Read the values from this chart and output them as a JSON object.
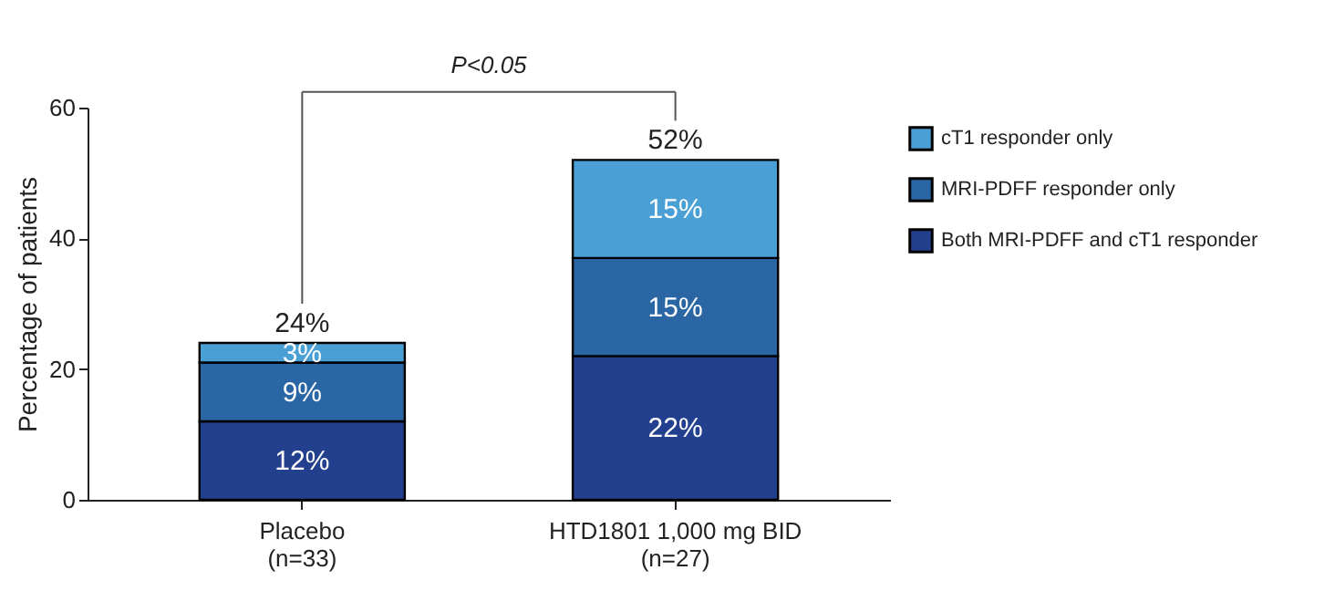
{
  "chart_data": {
    "type": "bar",
    "stacked": true,
    "categories": [
      "Placebo\n(n=33)",
      "HTD1801 1,000 mg BID\n(n=27)"
    ],
    "series": [
      {
        "name": "Both MRI-PDFF and cT1 responder",
        "color": "#23408e",
        "values": [
          12,
          22
        ],
        "value_labels": [
          "12%",
          "22%"
        ]
      },
      {
        "name": "MRI-PDFF responder only",
        "color": "#2a66a3",
        "values": [
          9,
          15
        ],
        "value_labels": [
          "9%",
          "15%"
        ]
      },
      {
        "name": "cT1 responder only",
        "color": "#4a9fd4",
        "values": [
          3,
          15
        ],
        "value_labels": [
          "3%",
          "15%"
        ]
      }
    ],
    "totals": [
      "24%",
      "52%"
    ],
    "ylabel": "Percentage of patients",
    "ylim": [
      0,
      60
    ],
    "yticks": [
      0,
      20,
      40,
      60
    ],
    "annotations": [
      "P<0.05"
    ],
    "legend": "top right",
    "grid": false
  }
}
